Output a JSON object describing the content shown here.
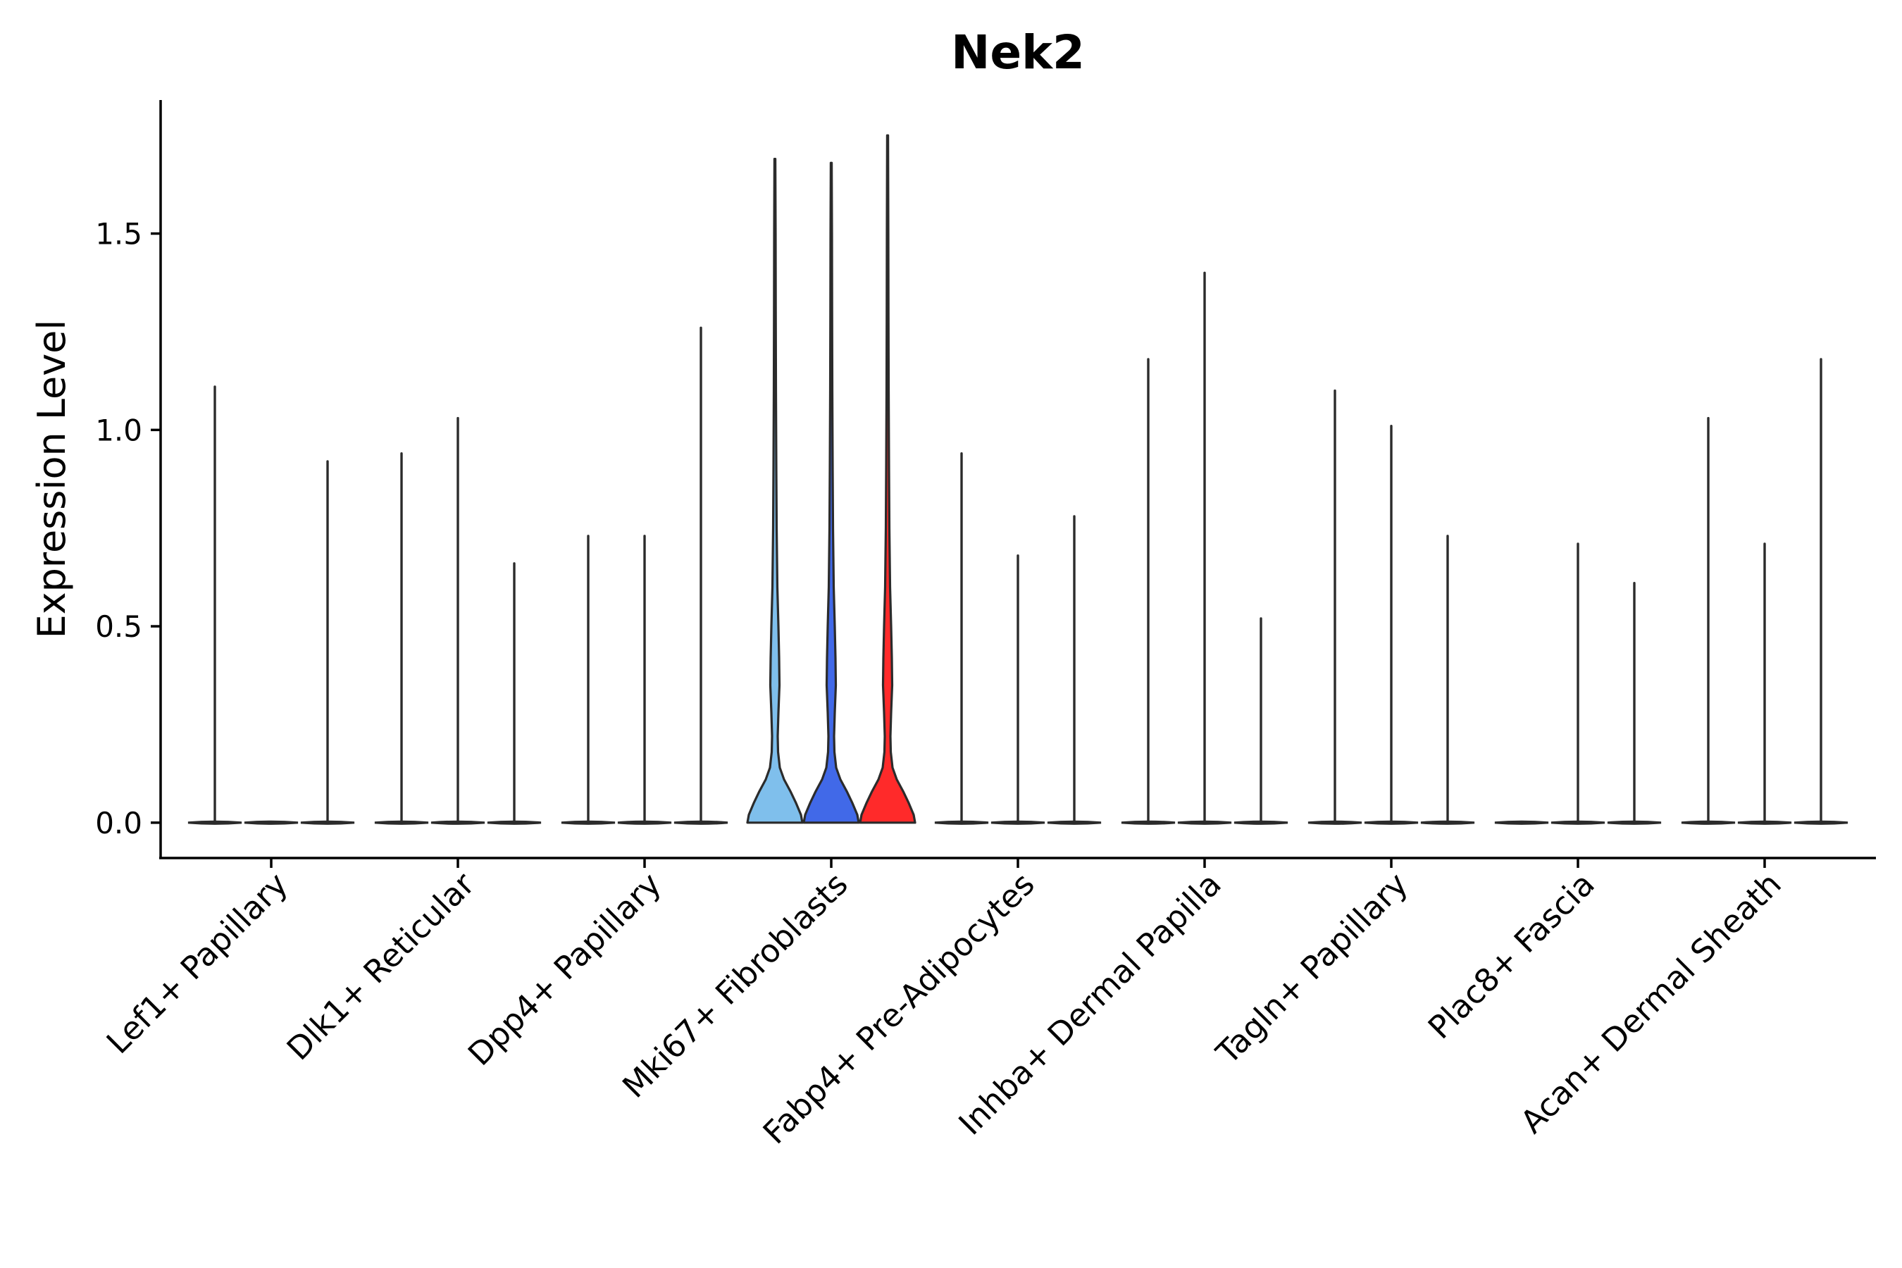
{
  "chart_data": {
    "type": "violin",
    "title": "Nek2",
    "xlabel": "",
    "ylabel": "Expression Level",
    "ylim": [
      -0.09,
      1.84
    ],
    "yticks": [
      0.0,
      0.5,
      1.0,
      1.5
    ],
    "ytick_labels": [
      "0.0",
      "0.5",
      "1.0",
      "1.5"
    ],
    "groups_per_category": 3,
    "categories": [
      "Lef1+ Papillary",
      "Dlk1+ Reticular",
      "Dpp4+ Papillary",
      "Mki67+ Fibroblasts",
      "Fabp4+ Pre-Adipocytes",
      "Inhba+ Dermal Papilla",
      "Tagln+ Papillary",
      "Plac8+ Fascia",
      "Acan+ Dermal Sheath"
    ],
    "series": [
      {
        "name": "group 1",
        "color": "#7fbfec"
      },
      {
        "name": "group 2",
        "color": "#4169e8"
      },
      {
        "name": "group 3",
        "color": "#ff2a2a"
      }
    ],
    "violins": [
      {
        "category": "Lef1+ Papillary",
        "group": 1,
        "max": 1.11,
        "filled": false
      },
      {
        "category": "Lef1+ Papillary",
        "group": 2,
        "max": 0.0,
        "filled": false
      },
      {
        "category": "Lef1+ Papillary",
        "group": 3,
        "max": 0.92,
        "filled": false
      },
      {
        "category": "Dlk1+ Reticular",
        "group": 1,
        "max": 0.94,
        "filled": false
      },
      {
        "category": "Dlk1+ Reticular",
        "group": 2,
        "max": 1.03,
        "filled": false
      },
      {
        "category": "Dlk1+ Reticular",
        "group": 3,
        "max": 0.66,
        "filled": false
      },
      {
        "category": "Dpp4+ Papillary",
        "group": 1,
        "max": 0.73,
        "filled": false
      },
      {
        "category": "Dpp4+ Papillary",
        "group": 2,
        "max": 0.73,
        "filled": false
      },
      {
        "category": "Dpp4+ Papillary",
        "group": 3,
        "max": 1.26,
        "filled": false
      },
      {
        "category": "Mki67+ Fibroblasts",
        "group": 1,
        "max": 1.69,
        "filled": true
      },
      {
        "category": "Mki67+ Fibroblasts",
        "group": 2,
        "max": 1.68,
        "filled": true
      },
      {
        "category": "Mki67+ Fibroblasts",
        "group": 3,
        "max": 1.75,
        "filled": true
      },
      {
        "category": "Fabp4+ Pre-Adipocytes",
        "group": 1,
        "max": 0.94,
        "filled": false
      },
      {
        "category": "Fabp4+ Pre-Adipocytes",
        "group": 2,
        "max": 0.68,
        "filled": false
      },
      {
        "category": "Fabp4+ Pre-Adipocytes",
        "group": 3,
        "max": 0.78,
        "filled": false
      },
      {
        "category": "Inhba+ Dermal Papilla",
        "group": 1,
        "max": 1.18,
        "filled": false
      },
      {
        "category": "Inhba+ Dermal Papilla",
        "group": 2,
        "max": 1.4,
        "filled": false
      },
      {
        "category": "Inhba+ Dermal Papilla",
        "group": 3,
        "max": 0.52,
        "filled": false
      },
      {
        "category": "Tagln+ Papillary",
        "group": 1,
        "max": 1.1,
        "filled": false
      },
      {
        "category": "Tagln+ Papillary",
        "group": 2,
        "max": 1.01,
        "filled": false
      },
      {
        "category": "Tagln+ Papillary",
        "group": 3,
        "max": 0.73,
        "filled": false
      },
      {
        "category": "Plac8+ Fascia",
        "group": 1,
        "max": 0.0,
        "filled": false
      },
      {
        "category": "Plac8+ Fascia",
        "group": 2,
        "max": 0.71,
        "filled": false
      },
      {
        "category": "Plac8+ Fascia",
        "group": 3,
        "max": 0.61,
        "filled": false
      },
      {
        "category": "Acan+ Dermal Sheath",
        "group": 1,
        "max": 1.03,
        "filled": false
      },
      {
        "category": "Acan+ Dermal Sheath",
        "group": 2,
        "max": 0.71,
        "filled": false
      },
      {
        "category": "Acan+ Dermal Sheath",
        "group": 3,
        "max": 1.18,
        "filled": false
      }
    ]
  }
}
